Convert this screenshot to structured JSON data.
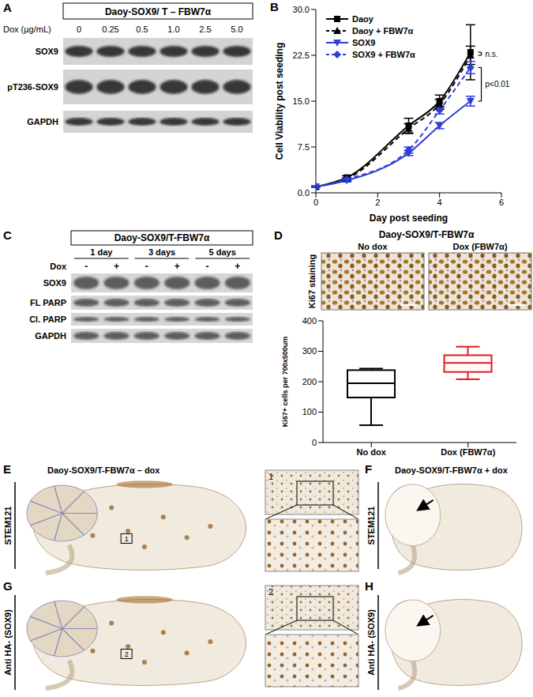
{
  "panels": {
    "A": {
      "letter": "A",
      "title": "Daoy-SOX9/ T – FBW7α",
      "dose_label": "Dox (µg/mL)",
      "doses": [
        "0",
        "0.25",
        "0.5",
        "1.0",
        "2.5",
        "5.0"
      ],
      "rows": [
        "SOX9",
        "pT236-SOX9",
        "GAPDH"
      ]
    },
    "B": {
      "letter": "B"
    },
    "C": {
      "letter": "C",
      "title": "Daoy-SOX9/T-FBW7α",
      "groups": [
        "1 day",
        "3 days",
        "5 days"
      ],
      "dox_label": "Dox",
      "dox_states": [
        "-",
        "+"
      ],
      "rows": [
        "SOX9",
        "FL PARP",
        "Cl. PARP",
        "GAPDH"
      ]
    },
    "D": {
      "letter": "D",
      "title": "Daoy-SOX9/T-FBW7α",
      "stain": "Ki67 staining",
      "images": [
        "No dox",
        "Dox (FBW7α)"
      ]
    },
    "E": {
      "letter": "E",
      "title": "Daoy-SOX9/T-FBW7α – dox",
      "stain": "STEM121",
      "inset": "1"
    },
    "F": {
      "letter": "F",
      "title": "Daoy-SOX9/T-FBW7α + dox",
      "stain": "STEM121"
    },
    "G": {
      "letter": "G",
      "stain": "Anti HA- (SOX9)",
      "inset": "2"
    },
    "H": {
      "letter": "H",
      "stain": "Anti HA- (SOX9)"
    }
  },
  "chart_data": [
    {
      "type": "line",
      "x_label": "Day post seeding",
      "y_label": "Cell Viability post seeding",
      "xlim": [
        0,
        6
      ],
      "xticks": [
        0,
        2,
        4,
        6
      ],
      "ylim": [
        0,
        30
      ],
      "yticks": [
        {
          "value": 0,
          "label": "0.0"
        },
        7.5,
        {
          "value": 15,
          "label": "15.0"
        },
        22.5,
        {
          "value": 30,
          "label": "30.0"
        }
      ],
      "x": [
        0,
        1,
        3,
        4,
        5
      ],
      "legend": "top-left",
      "series": [
        {
          "name": "Daoy",
          "color": "#000000",
          "marker": "square",
          "line_style": "solid",
          "values": [
            1,
            2.5,
            11,
            15,
            23
          ],
          "errors": [
            0.1,
            0.3,
            1.2,
            1.0,
            4.5
          ]
        },
        {
          "name": "Daoy + FBW7α",
          "color": "#000000",
          "marker": "triangle",
          "line_style": "dashed",
          "values": [
            1,
            2.3,
            10.5,
            14.5,
            22.5
          ],
          "errors": [
            0.1,
            0.2,
            0.8,
            0.8,
            1.5
          ]
        },
        {
          "name": "SOX9",
          "color": "#2f3fd6",
          "marker": "triangle-down",
          "line_style": "solid",
          "values": [
            1,
            2,
            6.5,
            11,
            15
          ],
          "errors": [
            0.1,
            0.2,
            0.4,
            0.5,
            0.8
          ]
        },
        {
          "name": "SOX9 + FBW7α",
          "color": "#2f3fd6",
          "marker": "diamond",
          "line_style": "dashed",
          "values": [
            1,
            2.2,
            7,
            13.5,
            20.5
          ],
          "errors": [
            0.1,
            0.2,
            0.5,
            0.6,
            1.0
          ]
        }
      ],
      "annotations": [
        "n.s.",
        "p<0.01"
      ]
    },
    {
      "type": "box",
      "y_label": "Ki67+ cells per 700x500um",
      "categories": [
        "No dox",
        "Dox (FBW7α)"
      ],
      "ylim": [
        0,
        400
      ],
      "yticks": [
        0,
        100,
        200,
        300,
        400
      ],
      "colors": [
        "#000000",
        "#e31a1c"
      ],
      "min": [
        57,
        208
      ],
      "q1": [
        148,
        232
      ],
      "median": [
        195,
        262
      ],
      "q3": [
        238,
        287
      ],
      "max": [
        243,
        315
      ]
    }
  ]
}
